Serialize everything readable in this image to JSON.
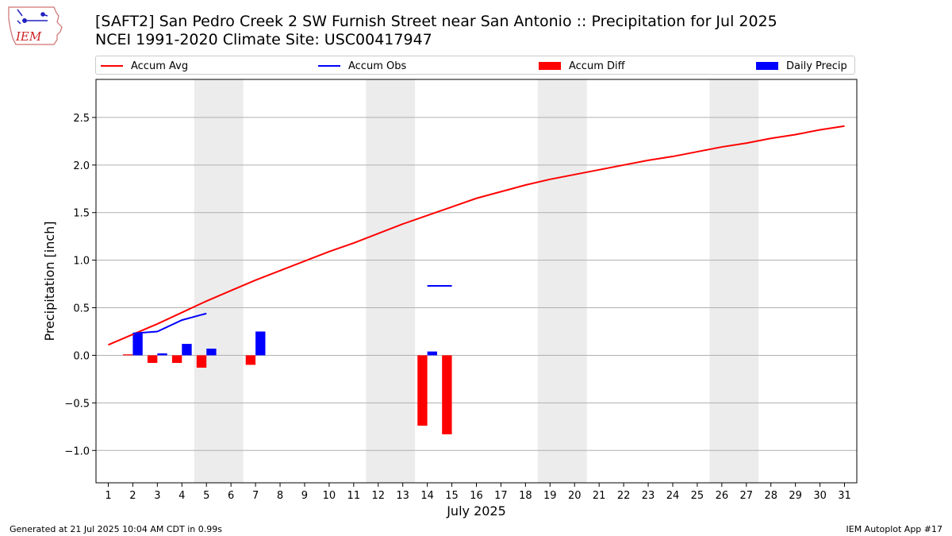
{
  "header": {
    "title_line1": "[SAFT2] San Pedro Creek 2 SW Furnish Street near San Antonio :: Precipitation for Jul 2025",
    "title_line2": "NCEI 1991-2020 Climate Site: USC00417947"
  },
  "logo": {
    "text": "IEM",
    "icon": "iowa-state-weather-logo"
  },
  "legend": {
    "items": [
      {
        "label": "Accum Avg",
        "kind": "line",
        "color": "#ff0000"
      },
      {
        "label": "Accum Obs",
        "kind": "line",
        "color": "#0000ff"
      },
      {
        "label": "Accum Diff",
        "kind": "bar",
        "color": "#ff0000"
      },
      {
        "label": "Daily Precip",
        "kind": "bar",
        "color": "#0000ff"
      }
    ]
  },
  "footer": {
    "left": "Generated at 21 Jul 2025 10:04 AM CDT in 0.99s",
    "right": "IEM Autoplot App #17"
  },
  "chart_data": {
    "type": "line",
    "xlabel": "July 2025",
    "ylabel": "Precipitation [inch]",
    "xlim": [
      0.5,
      31.5
    ],
    "ylim": [
      -1.34,
      2.9
    ],
    "grid": "horizontal",
    "legend_position": "top",
    "x": [
      1,
      2,
      3,
      4,
      5,
      6,
      7,
      8,
      9,
      10,
      11,
      12,
      13,
      14,
      15,
      16,
      17,
      18,
      19,
      20,
      21,
      22,
      23,
      24,
      25,
      26,
      27,
      28,
      29,
      30,
      31
    ],
    "yticks": [
      -1.0,
      -0.5,
      0.0,
      0.5,
      1.0,
      1.5,
      2.0,
      2.5
    ],
    "ytick_labels": [
      "−1.0",
      "−0.5",
      "0.0",
      "0.5",
      "1.0",
      "1.5",
      "2.0",
      "2.5"
    ],
    "weekend_shading": [
      [
        4.5,
        6.5
      ],
      [
        11.5,
        13.5
      ],
      [
        18.5,
        20.5
      ],
      [
        25.5,
        27.5
      ]
    ],
    "series": [
      {
        "name": "Accum Avg",
        "kind": "line",
        "color": "#ff0000",
        "x": [
          1,
          2,
          3,
          4,
          5,
          6,
          7,
          8,
          9,
          10,
          11,
          12,
          13,
          14,
          15,
          16,
          17,
          18,
          19,
          20,
          21,
          22,
          23,
          24,
          25,
          26,
          27,
          28,
          29,
          30,
          31
        ],
        "values": [
          0.11,
          0.22,
          0.33,
          0.45,
          0.57,
          0.68,
          0.79,
          0.89,
          0.99,
          1.09,
          1.18,
          1.28,
          1.38,
          1.47,
          1.56,
          1.65,
          1.72,
          1.79,
          1.85,
          1.9,
          1.95,
          2.0,
          2.05,
          2.09,
          2.14,
          2.19,
          2.23,
          2.28,
          2.32,
          2.37,
          2.41
        ]
      },
      {
        "name": "Accum Obs",
        "kind": "line",
        "color": "#0000ff",
        "segments": [
          {
            "x": [
              2,
              3,
              4,
              5
            ],
            "values": [
              0.23,
              0.25,
              0.37,
              0.44
            ]
          },
          {
            "x": [
              14,
              15
            ],
            "values": [
              0.73,
              0.73
            ]
          }
        ]
      },
      {
        "name": "Accum Diff",
        "kind": "bar",
        "color": "#ff0000",
        "x": [
          2,
          3,
          4,
          5,
          7,
          14,
          15
        ],
        "values": [
          0.01,
          -0.08,
          -0.08,
          -0.13,
          -0.1,
          -0.74,
          -0.83
        ]
      },
      {
        "name": "Daily Precip",
        "kind": "bar",
        "color": "#0000ff",
        "x": [
          2,
          3,
          4,
          5,
          7,
          14
        ],
        "values": [
          0.23,
          0.02,
          0.12,
          0.07,
          0.25,
          0.04
        ]
      }
    ]
  }
}
